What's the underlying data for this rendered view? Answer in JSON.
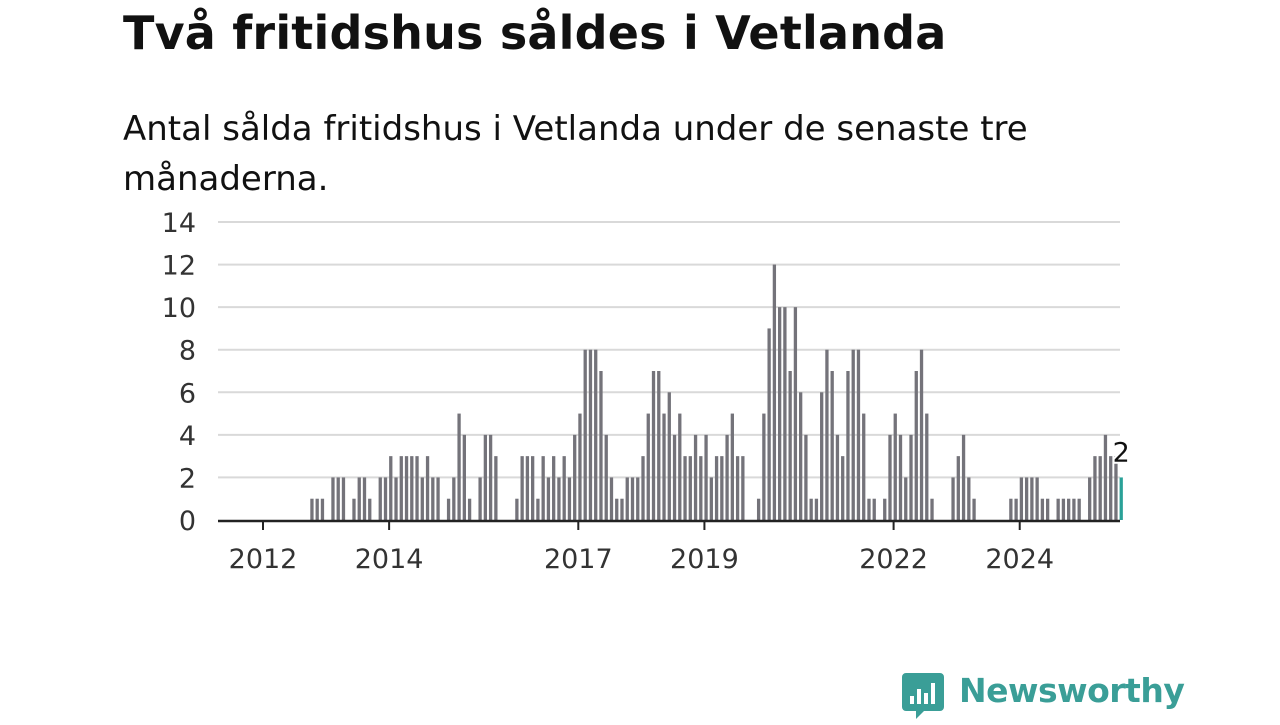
{
  "header": {
    "title": "Två fritidshus såldes i Vetlanda",
    "subtitle": "Antal sålda fritidshus i Vetlanda under de senaste tre månaderna."
  },
  "brand": {
    "name": "Newsworthy",
    "icon": "bar-chart-speech-bubble-icon",
    "color": "#3a9e97"
  },
  "colors": {
    "bar": "#74737a",
    "highlight": "#2aa198",
    "grid": "#d9d9d9",
    "axis": "#222222"
  },
  "chart_data": {
    "type": "bar",
    "title": "Två fritidshus såldes i Vetlanda",
    "subtitle": "Antal sålda fritidshus i Vetlanda under de senaste tre månaderna.",
    "xlabel": "",
    "ylabel": "",
    "x_tick_labels": [
      "2012",
      "2014",
      "2017",
      "2019",
      "2022",
      "2024"
    ],
    "y_ticks": [
      0,
      2,
      4,
      6,
      8,
      10,
      12,
      14
    ],
    "ylim": [
      0,
      14
    ],
    "grid": true,
    "legend": "none",
    "annotation": {
      "text": "2"
    },
    "series": [
      {
        "values": [
          0,
          0,
          0,
          0,
          0,
          0,
          0,
          0,
          0,
          1,
          1,
          1,
          0,
          2,
          2,
          2,
          0,
          1,
          2,
          2,
          1,
          0,
          2,
          2,
          3,
          2,
          3,
          3,
          3,
          3,
          2,
          3,
          2,
          2,
          0,
          1,
          2,
          5,
          4,
          1,
          0,
          2,
          4,
          4,
          3,
          0,
          0,
          0,
          1,
          3,
          3,
          3,
          1,
          3,
          2,
          3,
          2,
          3,
          2,
          4,
          5,
          8,
          8,
          8,
          7,
          4,
          2,
          1,
          1,
          2,
          2,
          2,
          3,
          5,
          7,
          7,
          5,
          6,
          4,
          5,
          3,
          3,
          4,
          3,
          4,
          2,
          3,
          3,
          4,
          5,
          3,
          3,
          0,
          0,
          1,
          5,
          9,
          12,
          10,
          10,
          7,
          10,
          6,
          4,
          1,
          1,
          6,
          8,
          7,
          4,
          3,
          7,
          8,
          8,
          5,
          1,
          1,
          0,
          1,
          4,
          5,
          4,
          2,
          4,
          7,
          8,
          5,
          1,
          0,
          0,
          0,
          2,
          3,
          4,
          2,
          1,
          0,
          0,
          0,
          0,
          0,
          0,
          1,
          1,
          2,
          2,
          2,
          2,
          1,
          1,
          0,
          1,
          1,
          1,
          1,
          1,
          0,
          2,
          3,
          3,
          4,
          3,
          3,
          2
        ]
      }
    ]
  }
}
